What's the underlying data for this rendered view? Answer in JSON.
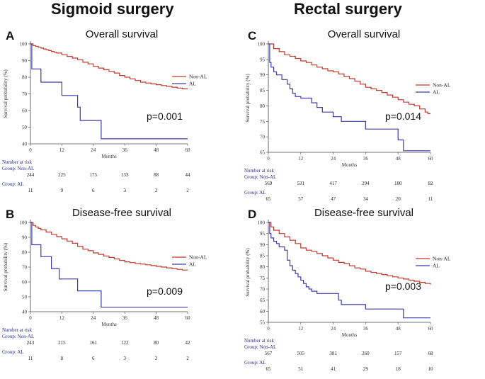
{
  "headers": {
    "left": "Sigmoid surgery",
    "right": "Rectal surgery"
  },
  "chart_data": [
    {
      "type": "line",
      "panel": "A",
      "title": "Overall survival",
      "xlabel": "Months",
      "ylabel": "Survival probability (%)",
      "xlim": [
        0,
        60
      ],
      "ylim": [
        40,
        100
      ],
      "xticks": [
        0,
        12,
        24,
        36,
        48,
        60
      ],
      "yticks": [
        40,
        50,
        60,
        70,
        80,
        90,
        100
      ],
      "pvalue": "p=0.001",
      "legend_position": "right",
      "series": [
        {
          "name": "Non-AL",
          "color": "#c0392b",
          "x": [
            0,
            1,
            2,
            3,
            4,
            5,
            6,
            7,
            8,
            9,
            10,
            12,
            14,
            16,
            18,
            20,
            22,
            24,
            26,
            28,
            30,
            32,
            34,
            36,
            38,
            40,
            42,
            44,
            46,
            48,
            50,
            52,
            54,
            56,
            58,
            60
          ],
          "y": [
            100,
            99,
            98.5,
            98,
            97.5,
            97,
            96.5,
            96,
            95.5,
            95,
            94.5,
            93.5,
            92.5,
            91.5,
            90.5,
            89,
            88,
            86.5,
            85.5,
            84.5,
            83.5,
            82.5,
            81,
            80,
            79,
            78,
            77,
            76.5,
            76,
            75.5,
            75,
            74.5,
            74,
            73.5,
            73,
            73
          ]
        },
        {
          "name": "AL",
          "color": "#3b3ba8",
          "x": [
            0,
            0.5,
            4,
            12,
            18,
            19,
            27,
            60
          ],
          "y": [
            100,
            85,
            77,
            69,
            62,
            54,
            43,
            43
          ]
        }
      ],
      "risk_table": {
        "header": "Number at risk",
        "groups": [
          {
            "label": "Group: Non-AL",
            "counts": [
              244,
              225,
              175,
              133,
              88,
              44
            ]
          },
          {
            "label": "Group: AL",
            "counts": [
              11,
              9,
              6,
              3,
              2,
              2
            ]
          }
        ]
      }
    },
    {
      "type": "line",
      "panel": "C",
      "title": "Overall survival",
      "xlabel": "Months",
      "ylabel": "Survival probability (%)",
      "xlim": [
        0,
        60
      ],
      "ylim": [
        65,
        100
      ],
      "xticks": [
        0,
        12,
        24,
        36,
        48,
        60
      ],
      "yticks": [
        65,
        70,
        75,
        80,
        85,
        90,
        95,
        100
      ],
      "pvalue": "p=0.014",
      "legend_position": "right",
      "series": [
        {
          "name": "Non-AL",
          "color": "#c0392b",
          "x": [
            0,
            2,
            4,
            6,
            8,
            10,
            12,
            14,
            16,
            18,
            20,
            22,
            24,
            26,
            28,
            30,
            32,
            34,
            36,
            38,
            40,
            42,
            44,
            46,
            48,
            50,
            52,
            54,
            56,
            58,
            59,
            60
          ],
          "y": [
            100,
            98.5,
            97.5,
            96.5,
            96,
            95.3,
            94.5,
            94,
            93.2,
            92.5,
            92,
            91.3,
            91,
            90.3,
            89.5,
            88.8,
            88,
            87,
            86,
            85.5,
            85,
            84.3,
            83.5,
            82.8,
            82,
            81.2,
            80.5,
            80,
            79,
            78,
            77.5,
            77.5
          ]
        },
        {
          "name": "AL",
          "color": "#3b3ba8",
          "x": [
            0,
            0.5,
            1,
            2,
            3,
            5,
            7,
            8,
            9,
            10,
            12,
            16,
            18,
            20,
            24,
            27,
            36,
            48,
            50,
            60
          ],
          "y": [
            100,
            94,
            92.5,
            91,
            90,
            88.5,
            87,
            85.5,
            84,
            83,
            82.5,
            81,
            79.5,
            78,
            76.5,
            75,
            72.5,
            69,
            65.5,
            65.5
          ]
        }
      ],
      "risk_table": {
        "header": "Number at risk",
        "groups": [
          {
            "label": "Group: Non-AL",
            "counts": [
              569,
              531,
              417,
              294,
              180,
              82
            ]
          },
          {
            "label": "Group: AL",
            "counts": [
              65,
              57,
              47,
              34,
              20,
              11
            ]
          }
        ]
      }
    },
    {
      "type": "line",
      "panel": "B",
      "title": "Disease-free survival",
      "xlabel": "Months",
      "ylabel": "Survival probability (%)",
      "xlim": [
        0,
        60
      ],
      "ylim": [
        40,
        100
      ],
      "xticks": [
        0,
        12,
        24,
        36,
        48,
        60
      ],
      "yticks": [
        40,
        50,
        60,
        70,
        80,
        90,
        100
      ],
      "pvalue": "p=0.009",
      "legend_position": "right",
      "series": [
        {
          "name": "Non-AL",
          "color": "#c0392b",
          "x": [
            0,
            1,
            2,
            3,
            4,
            6,
            8,
            10,
            12,
            14,
            16,
            18,
            20,
            22,
            24,
            26,
            28,
            30,
            32,
            34,
            36,
            38,
            40,
            42,
            44,
            46,
            48,
            50,
            52,
            54,
            56,
            58,
            60
          ],
          "y": [
            100,
            98,
            97,
            96,
            95,
            93.5,
            92,
            90.5,
            89,
            87.5,
            86,
            84,
            82,
            81,
            79.5,
            78.5,
            77.5,
            76.5,
            75.5,
            74.5,
            73.5,
            73,
            72.5,
            72,
            71.5,
            71,
            70.5,
            70,
            69.5,
            69,
            68.5,
            68,
            68
          ]
        },
        {
          "name": "AL",
          "color": "#3b3ba8",
          "x": [
            0,
            0.5,
            4,
            8,
            11,
            18,
            27,
            60
          ],
          "y": [
            100,
            85,
            77,
            69,
            62,
            54,
            43,
            43
          ]
        }
      ],
      "risk_table": {
        "header": "Number at risk",
        "groups": [
          {
            "label": "Group: Non-AL",
            "counts": [
              243,
              215,
              161,
              122,
              80,
              42
            ]
          },
          {
            "label": "Group: AL",
            "counts": [
              11,
              8,
              6,
              3,
              2,
              2
            ]
          }
        ]
      }
    },
    {
      "type": "line",
      "panel": "D",
      "title": "Disease-free survival",
      "xlabel": "Months",
      "ylabel": "Survival probability (%)",
      "xlim": [
        0,
        60
      ],
      "ylim": [
        55,
        100
      ],
      "xticks": [
        0,
        12,
        24,
        36,
        48,
        60
      ],
      "yticks": [
        55,
        60,
        65,
        70,
        75,
        80,
        85,
        90,
        95,
        100
      ],
      "pvalue": "p=0.003",
      "legend_position": "right",
      "series": [
        {
          "name": "Non-AL",
          "color": "#c0392b",
          "x": [
            0,
            1,
            2,
            4,
            6,
            8,
            10,
            12,
            14,
            16,
            18,
            20,
            22,
            24,
            26,
            28,
            30,
            32,
            34,
            36,
            38,
            40,
            42,
            44,
            46,
            48,
            50,
            52,
            54,
            56,
            58,
            60
          ],
          "y": [
            100,
            98,
            96.5,
            95,
            93.5,
            92,
            90.5,
            88.5,
            87.5,
            87,
            86,
            85,
            84,
            83,
            82,
            81.5,
            80.5,
            79.5,
            79,
            78,
            77.5,
            77,
            76.5,
            76,
            75.5,
            75,
            74.5,
            74,
            73.5,
            73,
            72.5,
            72
          ]
        },
        {
          "name": "AL",
          "color": "#3b3ba8",
          "x": [
            0,
            0.5,
            1,
            2,
            3,
            4,
            6,
            7,
            8,
            9,
            10,
            11,
            12,
            13,
            14,
            15,
            16,
            18,
            24,
            26,
            27,
            36,
            50,
            60
          ],
          "y": [
            100,
            95,
            93,
            91.5,
            90.5,
            89,
            87.5,
            83,
            80.5,
            78.5,
            77,
            75.5,
            74,
            72.5,
            71,
            70,
            69,
            68,
            68,
            65,
            63,
            61,
            57,
            57
          ]
        }
      ],
      "risk_table": {
        "header": "Number at risk",
        "groups": [
          {
            "label": "Group: Non-AL",
            "counts": [
              567,
              505,
              381,
              260,
              157,
              68
            ]
          },
          {
            "label": "Group: AL",
            "counts": [
              65,
              51,
              41,
              29,
              18,
              10
            ]
          }
        ]
      }
    }
  ]
}
